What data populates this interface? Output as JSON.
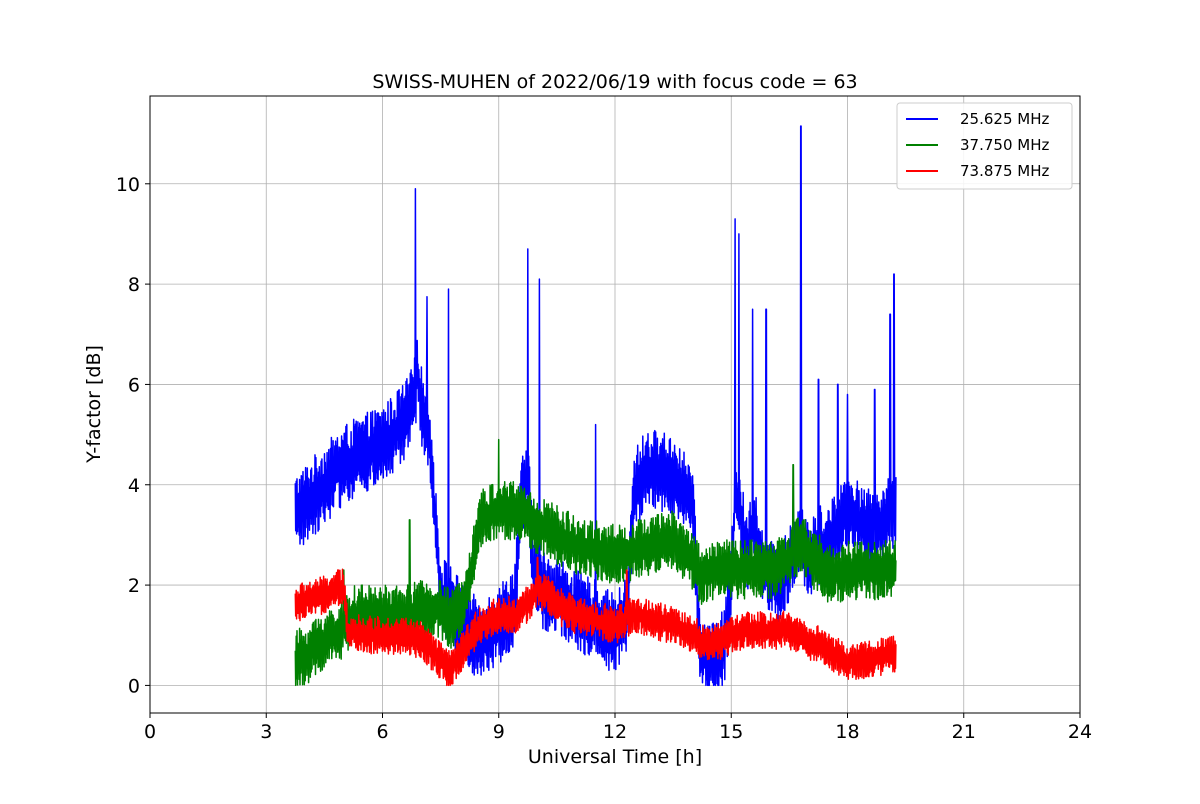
{
  "chart_data": {
    "type": "line",
    "title": "SWISS-MUHEN of 2022/06/19 with focus code = 63",
    "xlabel": "Universal Time [h]",
    "ylabel": "Y-factor [dB]",
    "xlim": [
      0,
      24
    ],
    "ylim": [
      -0.55,
      11.75
    ],
    "xticks": [
      0,
      3,
      6,
      9,
      12,
      15,
      18,
      21,
      24
    ],
    "yticks": [
      0,
      2,
      4,
      6,
      8,
      10
    ],
    "grid": true,
    "legend_position": "top-right",
    "series": [
      {
        "name": "25.625 MHz",
        "color": "#0000ff",
        "noise": 0.8,
        "x": [
          3.75,
          4.0,
          4.5,
          5.0,
          5.5,
          6.0,
          6.3,
          6.6,
          6.8,
          6.9,
          7.0,
          7.2,
          7.35,
          7.5,
          7.8,
          8.0,
          8.5,
          9.0,
          9.4,
          9.6,
          9.75,
          9.9,
          10.1,
          10.5,
          11.0,
          11.5,
          12.0,
          12.3,
          12.5,
          12.8,
          13.0,
          13.5,
          14.0,
          14.2,
          14.5,
          14.8,
          15.0,
          15.1,
          15.2,
          15.4,
          15.6,
          15.8,
          16.0,
          16.3,
          16.5,
          16.8,
          17.0,
          17.3,
          17.5,
          17.8,
          18.0,
          18.5,
          19.0,
          19.25
        ],
        "y": [
          3.4,
          3.6,
          4.0,
          4.4,
          4.6,
          4.8,
          5.0,
          5.3,
          5.6,
          6.3,
          5.6,
          5.1,
          3.4,
          1.8,
          1.6,
          1.3,
          0.9,
          1.2,
          1.6,
          3.8,
          4.1,
          2.3,
          1.9,
          1.8,
          1.5,
          1.3,
          1.0,
          1.4,
          3.9,
          4.3,
          4.3,
          4.2,
          3.6,
          0.6,
          0.5,
          0.7,
          2.0,
          3.8,
          3.6,
          2.6,
          3.3,
          2.3,
          2.1,
          2.0,
          2.4,
          3.0,
          2.4,
          2.8,
          2.8,
          3.2,
          3.5,
          3.1,
          3.3,
          3.5
        ],
        "spikes": [
          [
            6.85,
            9.9
          ],
          [
            7.15,
            7.75
          ],
          [
            7.7,
            7.9
          ],
          [
            9.75,
            8.7
          ],
          [
            10.05,
            8.1
          ],
          [
            11.5,
            5.2
          ],
          [
            15.1,
            9.3
          ],
          [
            15.2,
            9.0
          ],
          [
            15.55,
            7.5
          ],
          [
            15.9,
            7.5
          ],
          [
            16.8,
            11.15
          ],
          [
            17.25,
            6.1
          ],
          [
            17.75,
            6.0
          ],
          [
            18.0,
            5.8
          ],
          [
            18.7,
            5.9
          ],
          [
            19.1,
            7.4
          ],
          [
            19.2,
            8.2
          ]
        ]
      },
      {
        "name": "37.750 MHz",
        "color": "#008000",
        "noise": 0.6,
        "x": [
          3.75,
          4.0,
          4.5,
          5.0,
          5.2,
          5.5,
          6.0,
          6.5,
          7.0,
          7.5,
          7.8,
          8.0,
          8.3,
          8.5,
          9.0,
          9.5,
          10.0,
          10.5,
          11.0,
          11.5,
          12.0,
          12.5,
          13.0,
          13.5,
          14.0,
          14.2,
          14.5,
          15.0,
          15.5,
          16.0,
          16.5,
          16.8,
          17.0,
          17.3,
          17.5,
          18.0,
          18.5,
          19.0,
          19.25
        ],
        "y": [
          0.5,
          0.6,
          0.9,
          1.1,
          1.4,
          1.4,
          1.4,
          1.4,
          1.5,
          1.5,
          1.3,
          1.5,
          2.4,
          3.3,
          3.5,
          3.5,
          3.2,
          3.0,
          2.8,
          2.7,
          2.6,
          2.7,
          2.8,
          2.9,
          2.5,
          2.2,
          2.3,
          2.3,
          2.3,
          2.3,
          2.5,
          2.9,
          2.6,
          2.4,
          2.2,
          2.3,
          2.3,
          2.3,
          2.3
        ],
        "spikes": [
          [
            5.0,
            2.3
          ],
          [
            6.7,
            3.3
          ],
          [
            9.0,
            4.9
          ],
          [
            16.6,
            4.4
          ]
        ]
      },
      {
        "name": "73.875 MHz",
        "color": "#ff0000",
        "noise": 0.38,
        "x": [
          3.75,
          4.0,
          4.5,
          5.0,
          5.1,
          5.5,
          6.0,
          6.5,
          7.0,
          7.5,
          7.7,
          8.0,
          8.5,
          9.0,
          9.5,
          10.0,
          10.3,
          10.5,
          11.0,
          11.5,
          12.0,
          12.5,
          13.0,
          13.5,
          14.0,
          14.5,
          15.0,
          15.5,
          16.0,
          16.5,
          17.0,
          17.5,
          18.0,
          18.5,
          19.0,
          19.25
        ],
        "y": [
          1.6,
          1.7,
          1.8,
          1.95,
          1.1,
          1.0,
          1.0,
          1.0,
          0.9,
          0.5,
          0.3,
          0.6,
          1.2,
          1.4,
          1.4,
          1.9,
          1.8,
          1.6,
          1.4,
          1.3,
          1.2,
          1.4,
          1.3,
          1.2,
          1.0,
          0.8,
          1.0,
          1.1,
          1.1,
          1.1,
          0.9,
          0.7,
          0.45,
          0.5,
          0.6,
          0.6
        ],
        "spikes": [
          [
            4.85,
            2.3
          ],
          [
            10.0,
            2.55
          ],
          [
            12.3,
            2.3
          ]
        ]
      }
    ]
  }
}
